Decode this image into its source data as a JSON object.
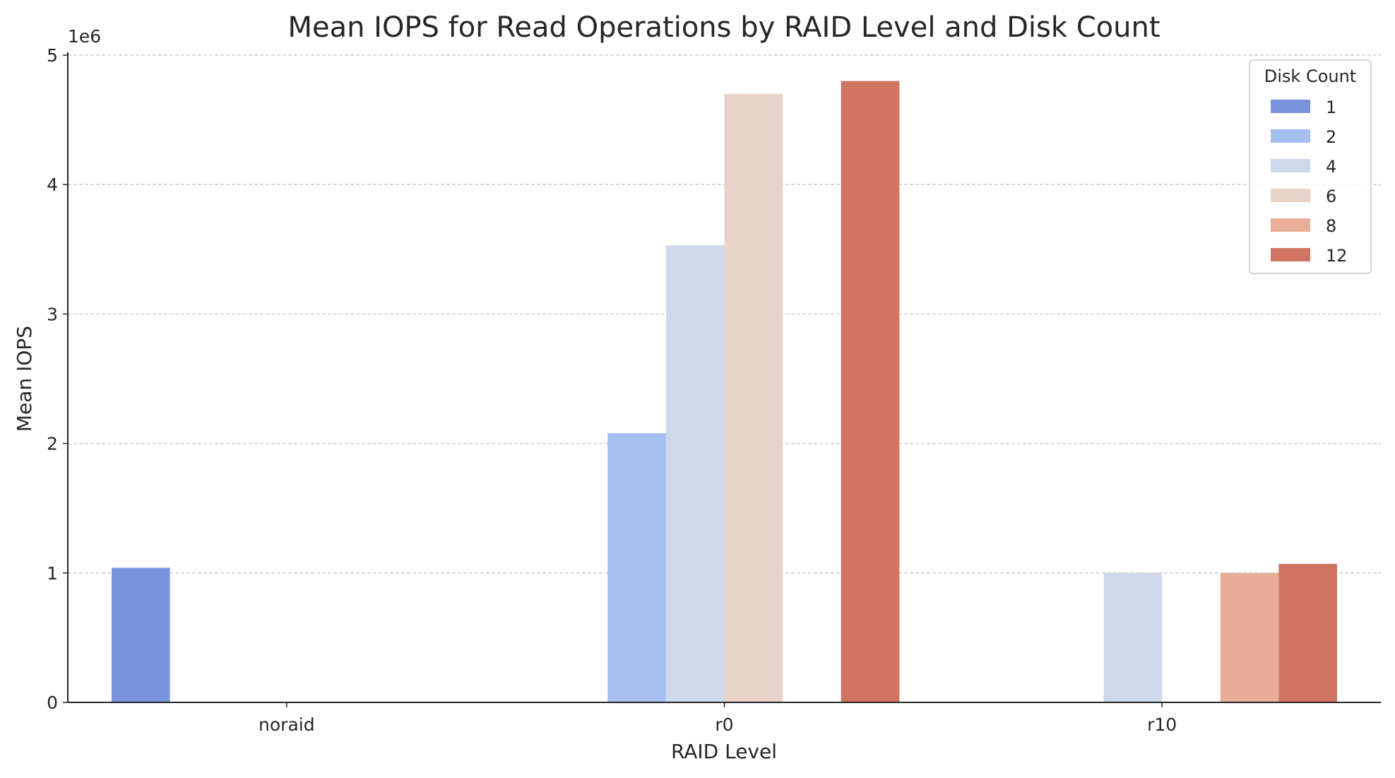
{
  "chart_data": {
    "type": "bar",
    "title": "Mean IOPS for Read Operations by RAID Level and Disk Count",
    "xlabel": "RAID Level",
    "ylabel": "Mean IOPS",
    "y_offset_label": "1e6",
    "categories": [
      "noraid",
      "r0",
      "r10"
    ],
    "ylim": [
      0,
      5000000
    ],
    "yticks": [
      0,
      1,
      2,
      3,
      4,
      5
    ],
    "grid": "y dashed",
    "legend": {
      "title": "Disk Count",
      "placement": "top-right"
    },
    "series": [
      {
        "name": "1",
        "color": "#7993dc",
        "values": [
          1040000,
          null,
          null
        ]
      },
      {
        "name": "2",
        "color": "#a6bff1",
        "values": [
          null,
          2080000,
          null
        ]
      },
      {
        "name": "4",
        "color": "#cdd8ea",
        "values": [
          null,
          3530000,
          1000000
        ]
      },
      {
        "name": "6",
        "color": "#e8d1c6",
        "values": [
          null,
          4700000,
          null
        ]
      },
      {
        "name": "8",
        "color": "#e8ad96",
        "values": [
          null,
          null,
          1000000
        ]
      },
      {
        "name": "12",
        "color": "#cf7562",
        "values": [
          null,
          4800000,
          1070000
        ]
      }
    ]
  }
}
